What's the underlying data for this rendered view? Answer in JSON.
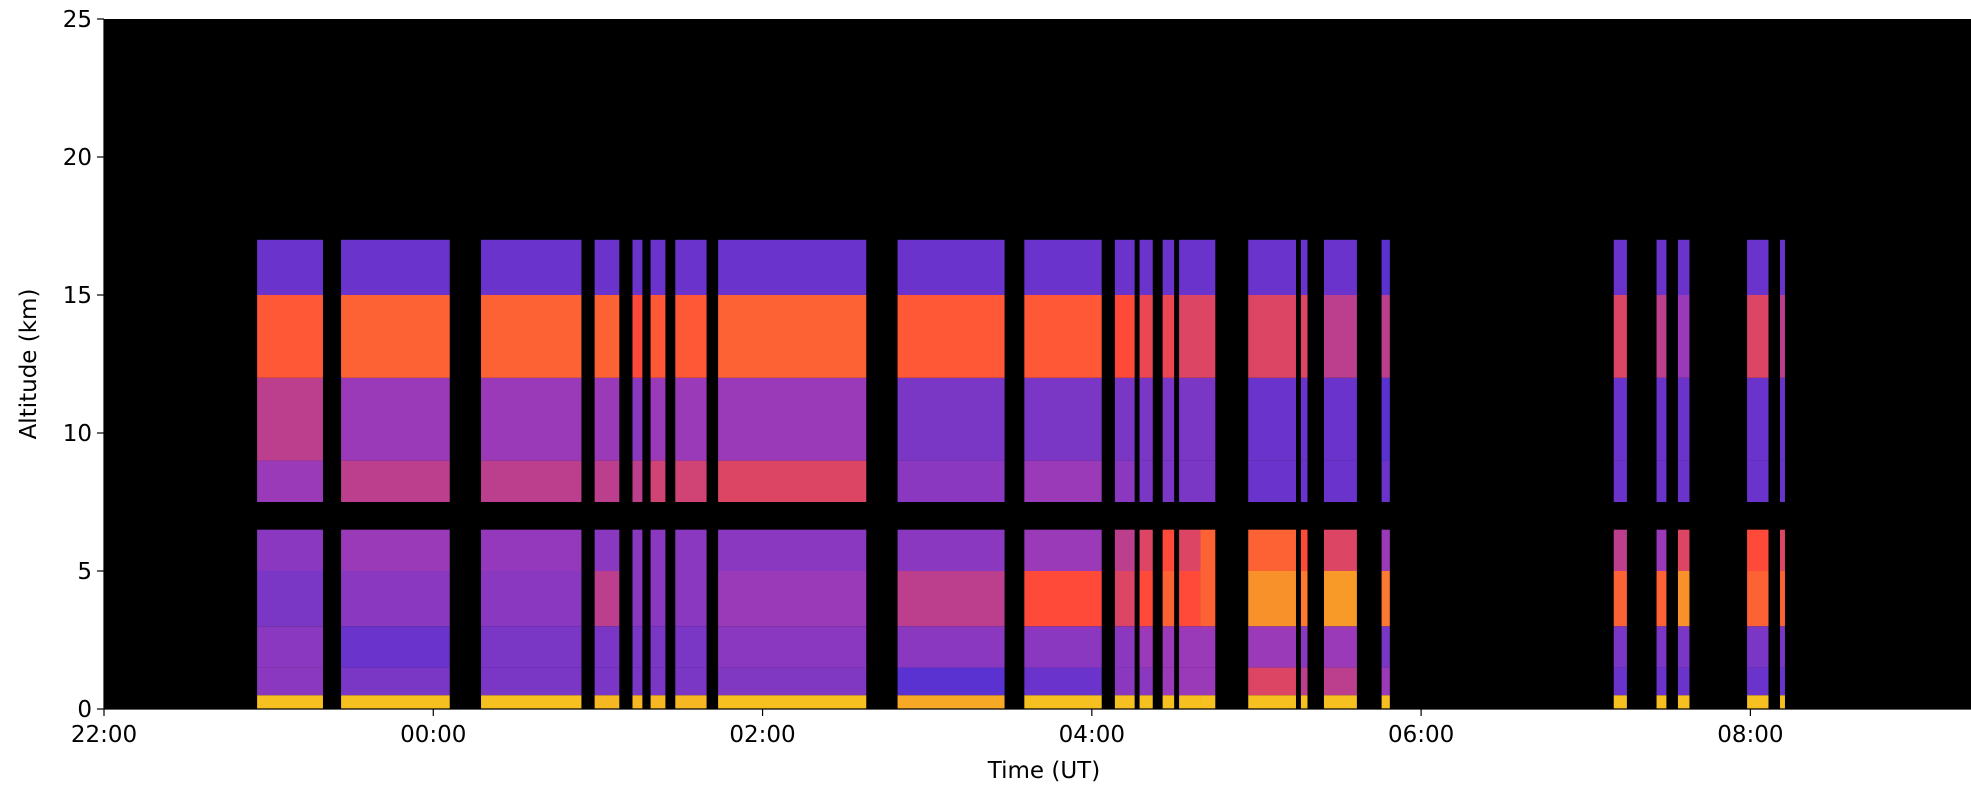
{
  "chart_data": {
    "type": "heatmap",
    "xlabel": "Time (UT)",
    "ylabel": "Altitude (km)",
    "xlim": [
      22,
      33.34
    ],
    "ylim": [
      0,
      25
    ],
    "xticks": [
      {
        "value": 22,
        "label": "22:00"
      },
      {
        "value": 24,
        "label": "00:00"
      },
      {
        "value": 26,
        "label": "02:00"
      },
      {
        "value": 28,
        "label": "04:00"
      },
      {
        "value": 30,
        "label": "06:00"
      },
      {
        "value": 32,
        "label": "08:00"
      }
    ],
    "yticks": [
      0,
      5,
      10,
      15,
      20,
      25
    ],
    "background": "#000000",
    "colorscale": [
      [
        0,
        "#000000"
      ],
      [
        0.3,
        "#5a32d2"
      ],
      [
        0.5,
        "#9a3ab8"
      ],
      [
        0.65,
        "#ff4a3a"
      ],
      [
        0.9,
        "#f5c020"
      ]
    ],
    "y_edges": [
      0,
      0.5,
      1.5,
      3,
      5,
      6.5,
      7.5,
      9,
      12,
      15,
      17
    ],
    "columns": [
      {
        "x0": 22.93,
        "x1": 23.33,
        "values": [
          0.9,
          0.45,
          0.45,
          0.4,
          0.45,
          0,
          0.5,
          0.55,
          0.68,
          0.35
        ]
      },
      {
        "x0": 23.44,
        "x1": 24.1,
        "values": [
          0.9,
          0.4,
          0.35,
          0.45,
          0.5,
          0,
          0.55,
          0.5,
          0.7,
          0.35
        ]
      },
      {
        "x0": 24.29,
        "x1": 24.9,
        "values": [
          0.9,
          0.4,
          0.4,
          0.45,
          0.48,
          0,
          0.55,
          0.5,
          0.7,
          0.35
        ]
      },
      {
        "x0": 24.98,
        "x1": 25.13,
        "values": [
          0.88,
          0.4,
          0.4,
          0.55,
          0.45,
          0,
          0.55,
          0.5,
          0.7,
          0.35
        ]
      },
      {
        "x0": 25.21,
        "x1": 25.27,
        "values": [
          0.88,
          0.4,
          0.4,
          0.45,
          0.45,
          0,
          0.55,
          0.45,
          0.65,
          0.35
        ]
      },
      {
        "x0": 25.32,
        "x1": 25.41,
        "values": [
          0.88,
          0.4,
          0.4,
          0.45,
          0.45,
          0,
          0.58,
          0.5,
          0.68,
          0.35
        ]
      },
      {
        "x0": 25.47,
        "x1": 25.66,
        "values": [
          0.88,
          0.4,
          0.4,
          0.45,
          0.45,
          0,
          0.58,
          0.5,
          0.68,
          0.35
        ]
      },
      {
        "x0": 25.73,
        "x1": 26.63,
        "values": [
          0.9,
          0.42,
          0.45,
          0.5,
          0.45,
          0,
          0.6,
          0.5,
          0.7,
          0.35
        ]
      },
      {
        "x0": 26.82,
        "x1": 27.47,
        "values": [
          0.85,
          0.3,
          0.45,
          0.55,
          0.45,
          0,
          0.45,
          0.4,
          0.68,
          0.35
        ]
      },
      {
        "x0": 27.59,
        "x1": 28.06,
        "values": [
          0.9,
          0.35,
          0.45,
          0.65,
          0.5,
          0,
          0.5,
          0.4,
          0.68,
          0.35
        ]
      },
      {
        "x0": 28.14,
        "x1": 28.26,
        "values": [
          0.9,
          0.45,
          0.45,
          0.6,
          0.55,
          0,
          0.45,
          0.4,
          0.65,
          0.35
        ]
      },
      {
        "x0": 28.29,
        "x1": 28.37,
        "values": [
          0.9,
          0.45,
          0.5,
          0.65,
          0.6,
          0,
          0.4,
          0.4,
          0.62,
          0.35
        ]
      },
      {
        "x0": 28.43,
        "x1": 28.5,
        "values": [
          0.9,
          0.5,
          0.5,
          0.7,
          0.65,
          0,
          0.4,
          0.4,
          0.62,
          0.35
        ]
      },
      {
        "x0": 28.53,
        "x1": 28.66,
        "values": [
          0.9,
          0.5,
          0.5,
          0.65,
          0.6,
          0,
          0.4,
          0.4,
          0.6,
          0.35
        ]
      },
      {
        "x0": 28.66,
        "x1": 28.75,
        "values": [
          0.9,
          0.5,
          0.5,
          0.7,
          0.7,
          0,
          0.4,
          0.4,
          0.6,
          0.35
        ]
      },
      {
        "x0": 28.95,
        "x1": 29.24,
        "values": [
          0.9,
          0.6,
          0.5,
          0.8,
          0.7,
          0,
          0.35,
          0.35,
          0.6,
          0.35
        ]
      },
      {
        "x0": 29.27,
        "x1": 29.31,
        "values": [
          0.9,
          0.55,
          0.45,
          0.75,
          0.65,
          0,
          0.35,
          0.35,
          0.6,
          0.35
        ]
      },
      {
        "x0": 29.41,
        "x1": 29.61,
        "values": [
          0.92,
          0.55,
          0.5,
          0.82,
          0.6,
          0,
          0.35,
          0.35,
          0.55,
          0.35
        ]
      },
      {
        "x0": 29.76,
        "x1": 29.81,
        "values": [
          0.9,
          0.5,
          0.4,
          0.75,
          0.5,
          0,
          0.35,
          0.3,
          0.55,
          0.3
        ]
      },
      {
        "x0": 31.17,
        "x1": 31.25,
        "values": [
          0.9,
          0.35,
          0.4,
          0.7,
          0.55,
          0,
          0.35,
          0.35,
          0.6,
          0.35
        ]
      },
      {
        "x0": 31.43,
        "x1": 31.49,
        "values": [
          0.9,
          0.35,
          0.4,
          0.7,
          0.5,
          0,
          0.35,
          0.35,
          0.55,
          0.35
        ]
      },
      {
        "x0": 31.56,
        "x1": 31.63,
        "values": [
          0.9,
          0.35,
          0.4,
          0.8,
          0.6,
          0,
          0.35,
          0.35,
          0.5,
          0.35
        ]
      },
      {
        "x0": 31.98,
        "x1": 32.11,
        "values": [
          0.9,
          0.35,
          0.4,
          0.7,
          0.65,
          0,
          0.35,
          0.35,
          0.6,
          0.35
        ]
      },
      {
        "x0": 32.18,
        "x1": 32.21,
        "values": [
          0.9,
          0.35,
          0.4,
          0.7,
          0.6,
          0,
          0.35,
          0.35,
          0.55,
          0.35
        ]
      }
    ]
  }
}
